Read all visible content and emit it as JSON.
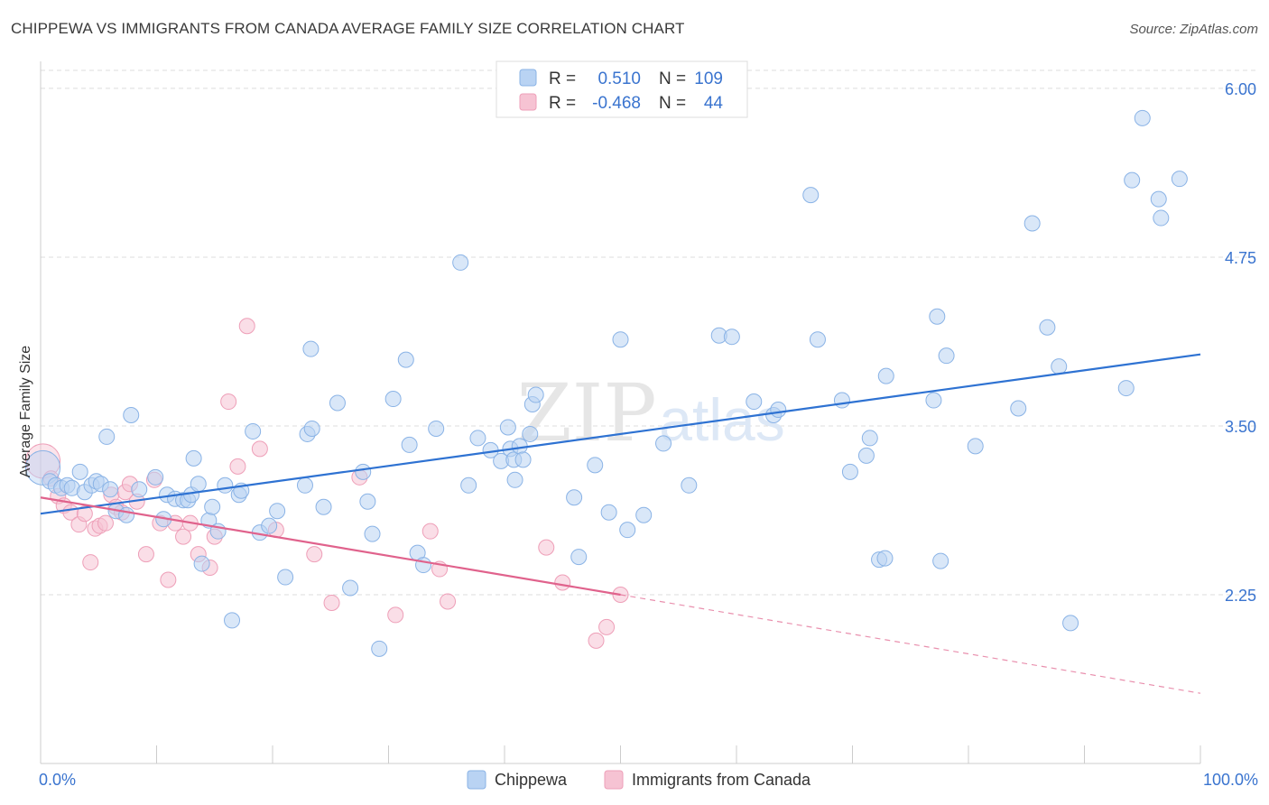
{
  "title": "CHIPPEWA VS IMMIGRANTS FROM CANADA AVERAGE FAMILY SIZE CORRELATION CHART",
  "source": "Source: ZipAtlas.com",
  "watermark": {
    "zip": "ZIP",
    "atlas": "atlas"
  },
  "colors": {
    "blue_fill": "#b9d3f3",
    "blue_stroke": "#8ab3e6",
    "blue_line": "#2e72d2",
    "pink_fill": "#f6c3d3",
    "pink_stroke": "#ee9fb8",
    "pink_line": "#e0628c",
    "axis_text_blue": "#3a74cf",
    "grid": "#dddddd"
  },
  "legend_stats": [
    {
      "r_label": "R =",
      "r_value": "0.510",
      "n_label": "N =",
      "n_value": "109"
    },
    {
      "r_label": "R =",
      "r_value": "-0.468",
      "n_label": "N =",
      "n_value": "44"
    }
  ],
  "chart_data": {
    "type": "scatter",
    "title": "CHIPPEWA VS IMMIGRANTS FROM CANADA AVERAGE FAMILY SIZE CORRELATION CHART",
    "xlabel": "",
    "ylabel": "Average Family Size",
    "xlim": [
      0,
      100
    ],
    "ylim": [
      1.0,
      6.2
    ],
    "x_tick_labels": [
      "0.0%",
      "100.0%"
    ],
    "y_ticks": [
      2.25,
      3.5,
      4.75,
      6.0
    ],
    "y_tick_labels": [
      "2.25",
      "3.50",
      "4.75",
      "6.00"
    ],
    "grid": true,
    "legend_position": "bottom",
    "series": [
      {
        "name": "Chippewa",
        "color": "#b9d3f3",
        "trend": {
          "x": [
            0,
            100
          ],
          "y": [
            2.85,
            4.03
          ]
        },
        "points": [
          [
            0.2,
            3.19
          ],
          [
            0.8,
            3.09
          ],
          [
            1.3,
            3.06
          ],
          [
            1.8,
            3.04
          ],
          [
            2.3,
            3.06
          ],
          [
            2.7,
            3.04
          ],
          [
            3.4,
            3.16
          ],
          [
            3.8,
            3.01
          ],
          [
            4.4,
            3.06
          ],
          [
            4.8,
            3.09
          ],
          [
            5.2,
            3.07
          ],
          [
            5.7,
            3.42
          ],
          [
            6.0,
            3.03
          ],
          [
            6.5,
            2.87
          ],
          [
            7.4,
            2.84
          ],
          [
            7.8,
            3.58
          ],
          [
            8.5,
            3.03
          ],
          [
            9.9,
            3.12
          ],
          [
            10.6,
            2.81
          ],
          [
            10.9,
            2.99
          ],
          [
            11.6,
            2.96
          ],
          [
            12.3,
            2.95
          ],
          [
            12.7,
            2.95
          ],
          [
            13.0,
            2.99
          ],
          [
            13.2,
            3.26
          ],
          [
            13.6,
            3.07
          ],
          [
            13.9,
            2.48
          ],
          [
            14.5,
            2.8
          ],
          [
            14.8,
            2.9
          ],
          [
            15.3,
            2.72
          ],
          [
            15.9,
            3.06
          ],
          [
            16.5,
            2.06
          ],
          [
            17.1,
            2.99
          ],
          [
            17.3,
            3.02
          ],
          [
            18.3,
            3.46
          ],
          [
            18.9,
            2.71
          ],
          [
            19.7,
            2.76
          ],
          [
            20.4,
            2.87
          ],
          [
            21.1,
            2.38
          ],
          [
            22.8,
            3.06
          ],
          [
            23.0,
            3.44
          ],
          [
            23.3,
            4.07
          ],
          [
            23.4,
            3.48
          ],
          [
            24.4,
            2.9
          ],
          [
            25.6,
            3.67
          ],
          [
            26.7,
            2.3
          ],
          [
            27.8,
            3.16
          ],
          [
            28.2,
            2.94
          ],
          [
            28.6,
            2.7
          ],
          [
            29.2,
            1.85
          ],
          [
            30.4,
            3.7
          ],
          [
            31.5,
            3.99
          ],
          [
            31.8,
            3.36
          ],
          [
            32.5,
            2.56
          ],
          [
            33.0,
            2.47
          ],
          [
            34.1,
            3.48
          ],
          [
            36.2,
            4.71
          ],
          [
            36.9,
            3.06
          ],
          [
            37.7,
            3.41
          ],
          [
            38.8,
            3.32
          ],
          [
            39.7,
            3.24
          ],
          [
            40.3,
            3.49
          ],
          [
            40.5,
            3.33
          ],
          [
            40.8,
            3.25
          ],
          [
            40.9,
            3.1
          ],
          [
            41.3,
            3.35
          ],
          [
            41.6,
            3.25
          ],
          [
            42.2,
            3.44
          ],
          [
            42.4,
            3.66
          ],
          [
            42.7,
            3.73
          ],
          [
            46.0,
            2.97
          ],
          [
            46.4,
            2.53
          ],
          [
            47.8,
            3.21
          ],
          [
            49.0,
            2.86
          ],
          [
            50.0,
            4.14
          ],
          [
            50.6,
            2.73
          ],
          [
            52.0,
            2.84
          ],
          [
            53.7,
            3.37
          ],
          [
            55.9,
            3.06
          ],
          [
            58.5,
            4.17
          ],
          [
            59.6,
            4.16
          ],
          [
            61.5,
            3.68
          ],
          [
            63.2,
            3.58
          ],
          [
            63.6,
            3.62
          ],
          [
            66.4,
            5.21
          ],
          [
            67.0,
            4.14
          ],
          [
            69.1,
            3.69
          ],
          [
            69.8,
            3.16
          ],
          [
            71.2,
            3.28
          ],
          [
            71.5,
            3.41
          ],
          [
            72.3,
            2.51
          ],
          [
            72.8,
            2.52
          ],
          [
            72.9,
            3.87
          ],
          [
            77.0,
            3.69
          ],
          [
            77.3,
            4.31
          ],
          [
            77.6,
            2.5
          ],
          [
            78.1,
            4.02
          ],
          [
            80.6,
            3.35
          ],
          [
            84.3,
            3.63
          ],
          [
            85.5,
            5.0
          ],
          [
            86.8,
            4.23
          ],
          [
            87.8,
            3.94
          ],
          [
            88.8,
            2.04
          ],
          [
            93.6,
            3.78
          ],
          [
            94.1,
            5.32
          ],
          [
            95.0,
            5.78
          ],
          [
            96.4,
            5.18
          ],
          [
            96.6,
            5.04
          ],
          [
            98.2,
            5.33
          ]
        ]
      },
      {
        "name": "Immigrants from Canada",
        "color": "#f6c3d3",
        "trend": {
          "x": [
            0,
            50
          ],
          "y": [
            2.97,
            2.25
          ]
        },
        "trend_extension": {
          "x": [
            50,
            100
          ],
          "y": [
            2.25,
            1.52
          ]
        },
        "points": [
          [
            0.2,
            3.24
          ],
          [
            0.9,
            3.11
          ],
          [
            1.5,
            2.98
          ],
          [
            2.0,
            2.91
          ],
          [
            2.6,
            2.86
          ],
          [
            3.3,
            2.77
          ],
          [
            3.8,
            2.85
          ],
          [
            4.3,
            2.49
          ],
          [
            4.7,
            2.74
          ],
          [
            5.1,
            2.76
          ],
          [
            5.6,
            2.78
          ],
          [
            6.1,
            2.99
          ],
          [
            6.5,
            2.9
          ],
          [
            7.0,
            2.86
          ],
          [
            7.3,
            3.01
          ],
          [
            7.7,
            3.07
          ],
          [
            8.3,
            2.94
          ],
          [
            9.1,
            2.55
          ],
          [
            9.8,
            3.1
          ],
          [
            10.3,
            2.78
          ],
          [
            11.0,
            2.36
          ],
          [
            11.6,
            2.78
          ],
          [
            12.3,
            2.68
          ],
          [
            12.9,
            2.78
          ],
          [
            13.6,
            2.55
          ],
          [
            14.6,
            2.45
          ],
          [
            15.0,
            2.68
          ],
          [
            16.2,
            3.68
          ],
          [
            17.0,
            3.2
          ],
          [
            17.8,
            4.24
          ],
          [
            18.9,
            3.33
          ],
          [
            20.3,
            2.73
          ],
          [
            23.6,
            2.55
          ],
          [
            25.1,
            2.19
          ],
          [
            27.5,
            3.12
          ],
          [
            30.6,
            2.1
          ],
          [
            33.6,
            2.72
          ],
          [
            34.4,
            2.44
          ],
          [
            35.1,
            2.2
          ],
          [
            43.6,
            2.6
          ],
          [
            45.0,
            2.34
          ],
          [
            47.9,
            1.91
          ],
          [
            48.8,
            2.01
          ],
          [
            50.0,
            2.25
          ]
        ]
      }
    ]
  }
}
